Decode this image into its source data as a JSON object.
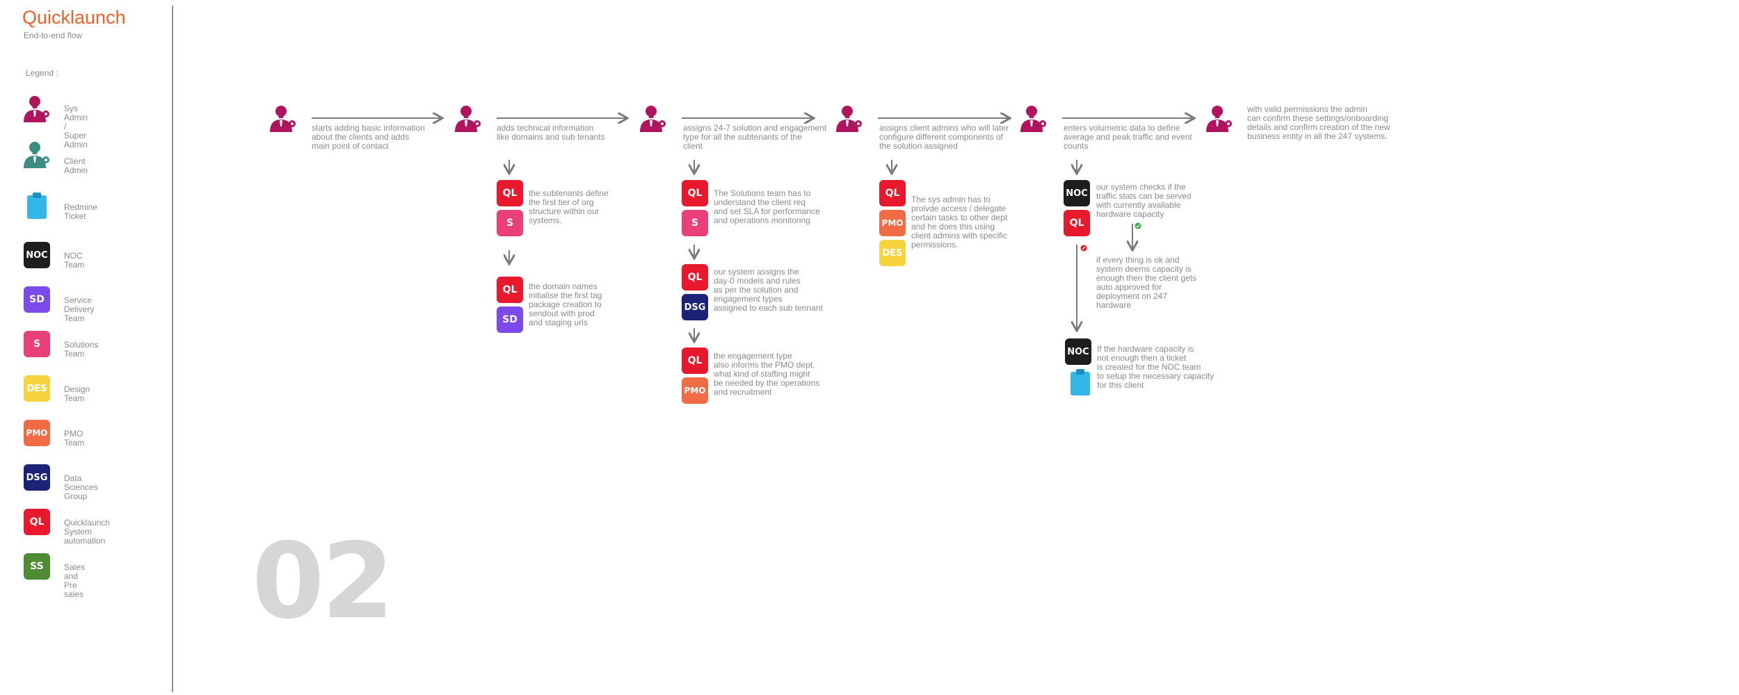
{
  "title": "Quicklaunch",
  "subtitle": "End-to-end flow",
  "legend": {
    "heading": "Legend :",
    "items": [
      {
        "icon": "sys-admin-icon",
        "label": "Sys Admin /\nSuper Admin"
      },
      {
        "icon": "client-admin-icon",
        "label": "Client Admin"
      },
      {
        "icon": "redmine-ticket-icon",
        "label": "Redmine\nTicket"
      },
      {
        "badge": "NOC",
        "label": "NOC\nTeam"
      },
      {
        "badge": "SD",
        "label": "Service Delivery\nTeam"
      },
      {
        "badge": "S",
        "label": "Solutions\nTeam"
      },
      {
        "badge": "DES",
        "label": "Design\nTeam"
      },
      {
        "badge": "PMO",
        "label": "PMO\nTeam"
      },
      {
        "badge": "DSG",
        "label": "Data Sciences\nGroup"
      },
      {
        "badge": "QL",
        "label": "Quicklaunch\nSystem automation"
      },
      {
        "badge": "SS",
        "label": "Sales and\nPre sales"
      }
    ]
  },
  "colors": {
    "accent": "#ee6028",
    "sys_admin": "#b0145e",
    "client_admin": "#3c8c84",
    "redmine": "#33b6e8",
    "noc": "#1e1e1e",
    "sd": "#7b4ae8",
    "s": "#e9407a",
    "des": "#f6d33f",
    "pmo": "#f16b45",
    "dsg": "#1c2275",
    "ql": "#e8192c",
    "ss": "#4e8b33",
    "ok": "#3aa845",
    "fail": "#e8192c"
  },
  "steps": [
    {
      "text": "starts adding basic information\nabout the clients and adds\nmain point of contact"
    },
    {
      "text": "adds technical information\nlike domains and sub tenants"
    },
    {
      "text": "assigns 24-7 solution and engagement\ntype for all the subtenants of the\nclient"
    },
    {
      "text": "assigns client admins who will later\nconfigure different components  of\nthe solution assigned"
    },
    {
      "text": "enters volumetric data to define\naverage and peak traffic and event\ncounts"
    },
    {
      "text": "with valid permissions the admin\ncan confirm these settings/onboarding\ndetails and confirm creation of the new\nbusiness entity in all the 247 systems."
    }
  ],
  "substeps": {
    "s2a": {
      "badges": [
        "QL",
        "S"
      ],
      "text": "the subtenants define\nthe first tier of org\nstructure within our\nsystems."
    },
    "s2b": {
      "badges": [
        "QL",
        "SD"
      ],
      "text": "the domain names\ninitialise the first tag\npackage creation to\nsendout with prod\nand staging urls"
    },
    "s3a": {
      "badges": [
        "QL",
        "S"
      ],
      "text": "The Solutions team has to\nunderstand the client req\nand set SLA for performance\nand operations monitoring"
    },
    "s3b": {
      "badges": [
        "QL",
        "DSG"
      ],
      "text": "our system assigns the\nday-0 models and rules\nas per the solution and\nengagement types\nassigned to each sub tennant"
    },
    "s3c": {
      "badges": [
        "QL",
        "PMO"
      ],
      "text": "the engagement type\nalso informs the PMO dept.\nwhat kind of staffing might\nbe needed by the operations\nand recruitment"
    },
    "s4a": {
      "badges": [
        "QL",
        "PMO",
        "DES"
      ],
      "text": "The sys admin has to\nproivde access / delegate\ncertain tasks to other dept\nand he does this using\nclient admins with specific\npermissions."
    },
    "s5a": {
      "badges": [
        "NOC",
        "QL"
      ],
      "text": "our system checks if the\ntraffic stats can be served\nwith currently available\nhardware capacity"
    },
    "s5ok": {
      "text": "if every thing is ok and\nsystem deems capacity is\nenough then the client gets\nauto approved for\ndeployment on 247\nhardware"
    },
    "s5fail": {
      "badges": [
        "NOC"
      ],
      "text": "If the hardware capacity is\n not enough then a ticket\n is created for the NOC team\n to setup the necessary capacity\n for this client"
    }
  },
  "page_number": "02"
}
